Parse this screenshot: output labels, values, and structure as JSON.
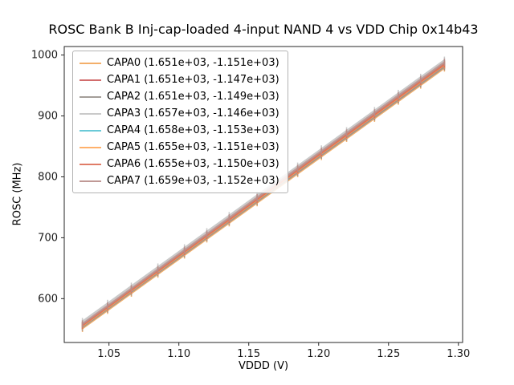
{
  "chart_data": {
    "type": "line",
    "title": "ROSC Bank B Inj-cap-loaded 4-input NAND 4 vs VDD Chip 0x14b43",
    "xlabel": "VDDD (V)",
    "ylabel": "ROSC (MHz)",
    "xlim": [
      1.018,
      1.303
    ],
    "ylim": [
      528,
      1014
    ],
    "xtick_labels": [
      "1.05",
      "1.10",
      "1.15",
      "1.20",
      "1.25",
      "1.30"
    ],
    "ytick_labels": [
      "600",
      "700",
      "800",
      "900",
      "1000"
    ],
    "x": [
      1.031,
      1.049,
      1.066,
      1.085,
      1.104,
      1.12,
      1.136,
      1.156,
      1.185,
      1.202,
      1.22,
      1.24,
      1.257,
      1.273,
      1.29
    ],
    "grid": false,
    "marker": "vertical-tick",
    "legend_position": "upper-left",
    "fit_note": "each series is linear: ROSC = slope * VDDD + intercept (coefficients shown in legend)",
    "series": [
      {
        "name": "CAPA0 (1.651e+03, -1.151e+03)",
        "slope": 1651,
        "intercept": -1151,
        "color": "#F2A65A"
      },
      {
        "name": "CAPA1 (1.651e+03, -1.147e+03)",
        "slope": 1651,
        "intercept": -1147,
        "color": "#CD5C5C"
      },
      {
        "name": "CAPA2 (1.651e+03, -1.149e+03)",
        "slope": 1651,
        "intercept": -1149,
        "color": "#9A938E"
      },
      {
        "name": "CAPA3 (1.657e+03, -1.146e+03)",
        "slope": 1657,
        "intercept": -1146,
        "color": "#C4C4C4"
      },
      {
        "name": "CAPA4 (1.658e+03, -1.153e+03)",
        "slope": 1658,
        "intercept": -1153,
        "color": "#5BC4D4"
      },
      {
        "name": "CAPA5 (1.655e+03, -1.151e+03)",
        "slope": 1655,
        "intercept": -1151,
        "color": "#FFA85B"
      },
      {
        "name": "CAPA6 (1.655e+03, -1.150e+03)",
        "slope": 1655,
        "intercept": -1150,
        "color": "#DD6E57"
      },
      {
        "name": "CAPA7 (1.659e+03, -1.152e+03)",
        "slope": 1659,
        "intercept": -1152,
        "color": "#B98E8B"
      }
    ]
  }
}
